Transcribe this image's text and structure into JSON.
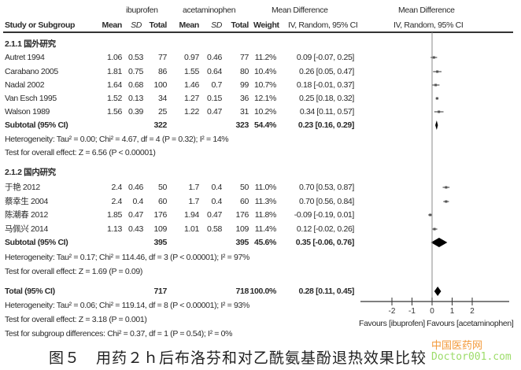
{
  "headers": {
    "group1": "ibuprofen",
    "group2": "acetaminophen",
    "md": "Mean Difference",
    "md_plot": "Mean Difference",
    "study": "Study or Subgroup",
    "mean1": "Mean",
    "sd1": "SD",
    "total1": "Total",
    "mean2": "Mean",
    "sd2": "SD",
    "total2": "Total",
    "weight": "Weight",
    "method": "IV, Random, 95% CI",
    "method_plot": "IV, Random, 95% CI"
  },
  "chart_data": {
    "type": "forest",
    "xlim": [
      -2,
      2
    ],
    "xticks": [
      "-2",
      "-1",
      "0",
      "1",
      "2"
    ],
    "xlabel_left": "Favours [ibuprofen]",
    "xlabel_right": "Favours [acetaminophen]",
    "subgroups": [
      {
        "title": "2.1.1 国外研究",
        "studies": [
          {
            "name": "Autret 1994",
            "m1": "1.06",
            "sd1": "0.53",
            "n1": "77",
            "m2": "0.97",
            "sd2": "0.46",
            "n2": "77",
            "weight": "11.2%",
            "ci": "0.09 [-0.07, 0.25]",
            "md": 0.09,
            "lo": -0.07,
            "hi": 0.25
          },
          {
            "name": "Carabano 2005",
            "m1": "1.81",
            "sd1": "0.75",
            "n1": "86",
            "m2": "1.55",
            "sd2": "0.64",
            "n2": "80",
            "weight": "10.4%",
            "ci": "0.26 [0.05, 0.47]",
            "md": 0.26,
            "lo": 0.05,
            "hi": 0.47
          },
          {
            "name": "Nadal 2002",
            "m1": "1.64",
            "sd1": "0.68",
            "n1": "100",
            "m2": "1.46",
            "sd2": "0.7",
            "n2": "99",
            "weight": "10.7%",
            "ci": "0.18 [-0.01, 0.37]",
            "md": 0.18,
            "lo": -0.01,
            "hi": 0.37
          },
          {
            "name": "Van Esch 1995",
            "m1": "1.52",
            "sd1": "0.13",
            "n1": "34",
            "m2": "1.27",
            "sd2": "0.15",
            "n2": "36",
            "weight": "12.1%",
            "ci": "0.25 [0.18, 0.32]",
            "md": 0.25,
            "lo": 0.18,
            "hi": 0.32
          },
          {
            "name": "Walson 1989",
            "m1": "1.56",
            "sd1": "0.39",
            "n1": "25",
            "m2": "1.22",
            "sd2": "0.47",
            "n2": "31",
            "weight": "10.2%",
            "ci": "0.34 [0.11, 0.57]",
            "md": 0.34,
            "lo": 0.11,
            "hi": 0.57
          }
        ],
        "subtotal": {
          "label": "Subtotal (95% CI)",
          "n1": "322",
          "n2": "323",
          "weight": "54.4%",
          "ci": "0.23 [0.16, 0.29]",
          "md": 0.23,
          "lo": 0.16,
          "hi": 0.29
        },
        "heterogeneity": "Heterogeneity: Tau² = 0.00; Chi² = 4.67, df = 4 (P = 0.32); I² = 14%",
        "overall": "Test for overall effect: Z = 6.56 (P < 0.00001)"
      },
      {
        "title": "2.1.2 国内研究",
        "studies": [
          {
            "name": "于艳 2012",
            "m1": "2.4",
            "sd1": "0.46",
            "n1": "50",
            "m2": "1.7",
            "sd2": "0.4",
            "n2": "50",
            "weight": "11.0%",
            "ci": "0.70 [0.53, 0.87]",
            "md": 0.7,
            "lo": 0.53,
            "hi": 0.87
          },
          {
            "name": "蔡幸生 2004",
            "m1": "2.4",
            "sd1": "0.4",
            "n1": "60",
            "m2": "1.7",
            "sd2": "0.4",
            "n2": "60",
            "weight": "11.3%",
            "ci": "0.70 [0.56, 0.84]",
            "md": 0.7,
            "lo": 0.56,
            "hi": 0.84
          },
          {
            "name": "陈潮春 2012",
            "m1": "1.85",
            "sd1": "0.47",
            "n1": "176",
            "m2": "1.94",
            "sd2": "0.47",
            "n2": "176",
            "weight": "11.8%",
            "ci": "-0.09 [-0.19, 0.01]",
            "md": -0.09,
            "lo": -0.19,
            "hi": 0.01
          },
          {
            "name": "马佩兴 2014",
            "m1": "1.13",
            "sd1": "0.43",
            "n1": "109",
            "m2": "1.01",
            "sd2": "0.58",
            "n2": "109",
            "weight": "11.4%",
            "ci": "0.12 [-0.02, 0.26]",
            "md": 0.12,
            "lo": -0.02,
            "hi": 0.26
          }
        ],
        "subtotal": {
          "label": "Subtotal (95% CI)",
          "n1": "395",
          "n2": "395",
          "weight": "45.6%",
          "ci": "0.35 [-0.06, 0.76]",
          "md": 0.35,
          "lo": -0.06,
          "hi": 0.76
        },
        "heterogeneity": "Heterogeneity: Tau² = 0.17; Chi² = 114.46, df = 3 (P < 0.00001); I² = 97%",
        "overall": "Test for overall effect: Z = 1.69 (P = 0.09)"
      }
    ],
    "total": {
      "label": "Total (95% CI)",
      "n1": "717",
      "n2": "718",
      "weight": "100.0%",
      "ci": "0.28 [0.11, 0.45]",
      "md": 0.28,
      "lo": 0.11,
      "hi": 0.45
    },
    "total_heterogeneity": "Heterogeneity: Tau² = 0.06; Chi² = 119.14, df = 8 (P < 0.00001); I² = 93%",
    "total_overall": "Test for overall effect: Z = 3.18 (P = 0.001)",
    "subgroup_diff": "Test for subgroup differences: Chi² = 0.37, df = 1 (P = 0.54); I² = 0%"
  },
  "caption": "图５　用药２ｈ后布洛芬和对乙酰氨基酚退热效果比较",
  "watermark": {
    "line1": "中国医药网",
    "line2": "Doctor001.com"
  }
}
